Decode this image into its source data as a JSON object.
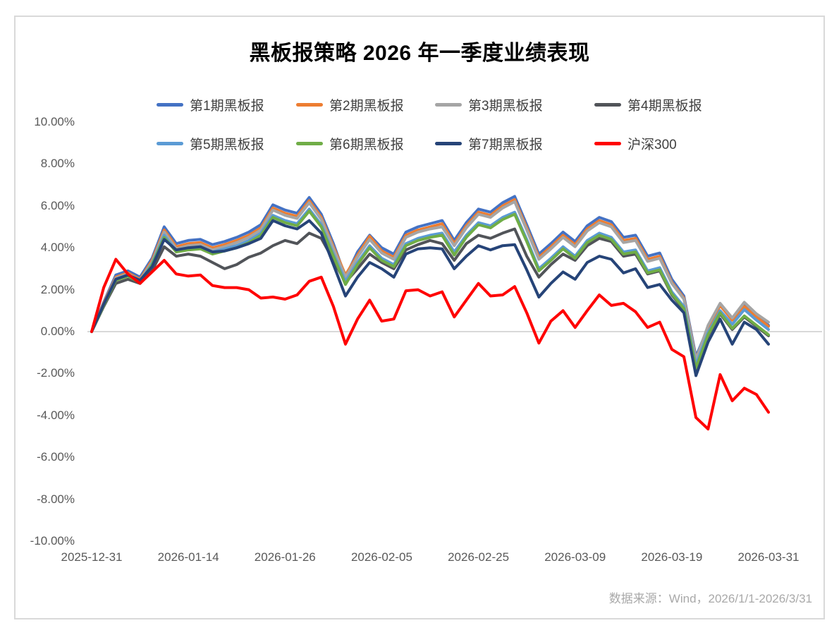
{
  "title": "黑板报策略 2026 年一季度业绩表现",
  "source_note": "数据来源：Wind，2026/1/1-2026/3/31",
  "chart_data": {
    "type": "line",
    "title": "黑板报策略 2026 年一季度业绩表现",
    "xlabel": "",
    "ylabel": "",
    "ylim": [
      -10,
      10
    ],
    "y_tick_labels": [
      "10.00%",
      "8.00%",
      "6.00%",
      "4.00%",
      "2.00%",
      "0.00%",
      "-2.00%",
      "-4.00%",
      "-6.00%",
      "-8.00%",
      "-10.00%"
    ],
    "x_tick_labels": [
      "2025-12-31",
      "2026-01-14",
      "2026-01-26",
      "2026-02-05",
      "2026-02-25",
      "2026-03-09",
      "2026-03-19",
      "2026-03-31"
    ],
    "x_tick_every": 8,
    "n_points": 57,
    "grid": "zero-line-only",
    "gridline_color": "#d9d9d9",
    "legend_position": "top",
    "series": [
      {
        "name": "第1期黑板报",
        "color": "#4472C4",
        "values": [
          0,
          1.4,
          2.7,
          2.9,
          2.6,
          3.5,
          5.0,
          4.2,
          4.35,
          4.4,
          4.15,
          4.3,
          4.5,
          4.75,
          5.1,
          6.05,
          5.8,
          5.65,
          6.4,
          5.6,
          4.2,
          2.6,
          3.8,
          4.6,
          4.0,
          3.7,
          4.75,
          5.0,
          5.15,
          5.3,
          4.35,
          5.2,
          5.85,
          5.7,
          6.15,
          6.45,
          5.1,
          3.7,
          4.2,
          4.75,
          4.3,
          5.05,
          5.45,
          5.25,
          4.5,
          4.6,
          3.6,
          3.75,
          2.5,
          1.7,
          -1.2,
          0.2,
          1.3,
          0.6,
          1.25,
          0.75,
          0.3
        ]
      },
      {
        "name": "第2期黑板报",
        "color": "#ED7D31",
        "values": [
          0,
          1.35,
          2.6,
          2.8,
          2.5,
          3.4,
          4.85,
          4.05,
          4.2,
          4.25,
          4.0,
          4.15,
          4.35,
          4.6,
          4.95,
          5.9,
          5.65,
          5.5,
          6.25,
          5.45,
          4.05,
          2.7,
          3.65,
          4.55,
          3.85,
          3.55,
          4.6,
          4.85,
          5.0,
          5.15,
          4.2,
          5.05,
          5.7,
          5.55,
          6.0,
          6.3,
          4.95,
          3.55,
          4.05,
          4.6,
          4.15,
          4.9,
          5.3,
          5.1,
          4.35,
          4.45,
          3.45,
          3.6,
          2.35,
          1.6,
          -1.3,
          0.15,
          1.25,
          0.55,
          1.2,
          0.7,
          0.25
        ]
      },
      {
        "name": "第3期黑板报",
        "color": "#A5A5A5",
        "values": [
          0,
          1.3,
          2.55,
          2.75,
          2.45,
          3.3,
          4.75,
          3.95,
          4.1,
          4.15,
          3.9,
          4.05,
          4.25,
          4.5,
          4.85,
          5.8,
          5.55,
          5.4,
          6.15,
          5.35,
          3.95,
          2.6,
          3.55,
          4.4,
          3.75,
          3.45,
          4.5,
          4.75,
          4.9,
          5.0,
          4.1,
          4.95,
          5.6,
          5.45,
          5.9,
          6.2,
          4.85,
          3.45,
          3.95,
          4.5,
          4.05,
          4.8,
          5.2,
          5.0,
          4.25,
          4.35,
          3.35,
          3.5,
          2.3,
          1.55,
          -1.35,
          0.3,
          1.35,
          0.65,
          1.4,
          0.85,
          0.45
        ]
      },
      {
        "name": "第4期黑板报",
        "color": "#515459",
        "values": [
          0,
          1.2,
          2.3,
          2.5,
          2.3,
          2.9,
          4.05,
          3.6,
          3.7,
          3.6,
          3.3,
          3.0,
          3.2,
          3.55,
          3.75,
          4.1,
          4.35,
          4.2,
          4.7,
          4.45,
          3.4,
          2.35,
          3.0,
          3.7,
          3.3,
          3.0,
          3.9,
          4.15,
          4.35,
          4.2,
          3.4,
          4.2,
          4.6,
          4.45,
          4.7,
          4.9,
          3.6,
          2.6,
          3.2,
          3.7,
          3.4,
          4.1,
          4.45,
          4.3,
          3.6,
          3.7,
          2.75,
          2.9,
          1.75,
          1.05,
          -1.8,
          -0.2,
          0.85,
          0.1,
          0.7,
          0.25,
          -0.2
        ]
      },
      {
        "name": "第5期黑板报",
        "color": "#5B9BD5",
        "values": [
          0,
          1.3,
          2.5,
          2.7,
          2.4,
          3.25,
          4.6,
          3.85,
          4.0,
          4.05,
          3.8,
          3.95,
          4.1,
          4.35,
          4.7,
          5.55,
          5.3,
          5.15,
          5.85,
          5.1,
          3.7,
          2.4,
          3.3,
          4.1,
          3.5,
          3.2,
          4.2,
          4.45,
          4.6,
          4.7,
          3.8,
          4.6,
          5.2,
          5.05,
          5.45,
          5.7,
          4.4,
          3.0,
          3.5,
          4.05,
          3.6,
          4.35,
          4.7,
          4.5,
          3.8,
          3.9,
          2.9,
          3.05,
          1.9,
          1.2,
          -1.6,
          -0.05,
          1.0,
          0.35,
          1.05,
          0.55,
          0.1
        ]
      },
      {
        "name": "第6期黑板报",
        "color": "#70AD47",
        "values": [
          0,
          1.25,
          2.45,
          2.65,
          2.35,
          3.2,
          4.5,
          3.8,
          3.9,
          3.95,
          3.7,
          3.85,
          4.0,
          4.25,
          4.6,
          5.45,
          5.2,
          5.05,
          5.75,
          5.0,
          3.6,
          2.25,
          3.2,
          4.0,
          3.4,
          3.1,
          4.1,
          4.35,
          4.5,
          4.6,
          3.65,
          4.5,
          5.1,
          4.95,
          5.35,
          5.6,
          4.3,
          2.9,
          3.4,
          3.95,
          3.5,
          4.25,
          4.6,
          4.4,
          3.7,
          3.8,
          2.8,
          2.95,
          1.8,
          1.1,
          -1.75,
          -0.15,
          0.9,
          0.15,
          0.75,
          0.3,
          -0.15
        ]
      },
      {
        "name": "第7期黑板报",
        "color": "#264478",
        "values": [
          0,
          1.3,
          2.5,
          2.7,
          2.45,
          3.1,
          4.4,
          3.9,
          4.0,
          4.05,
          3.8,
          3.85,
          4.0,
          4.2,
          4.45,
          5.3,
          5.05,
          4.9,
          5.3,
          4.7,
          3.2,
          1.7,
          2.6,
          3.3,
          3.0,
          2.6,
          3.7,
          3.95,
          4.0,
          3.95,
          3.0,
          3.6,
          4.1,
          3.9,
          4.1,
          4.15,
          2.95,
          1.65,
          2.3,
          2.85,
          2.5,
          3.3,
          3.6,
          3.45,
          2.8,
          3.0,
          2.1,
          2.25,
          1.5,
          0.9,
          -2.1,
          -0.5,
          0.6,
          -0.6,
          0.45,
          0.1,
          -0.6
        ]
      },
      {
        "name": "沪深300",
        "color": "#FF0000",
        "values": [
          0,
          2.1,
          3.45,
          2.75,
          2.3,
          2.85,
          3.4,
          2.75,
          2.65,
          2.7,
          2.2,
          2.1,
          2.1,
          2.0,
          1.6,
          1.65,
          1.55,
          1.75,
          2.4,
          2.6,
          1.2,
          -0.6,
          0.6,
          1.5,
          0.5,
          0.6,
          1.95,
          2.0,
          1.7,
          1.9,
          0.7,
          1.5,
          2.3,
          1.7,
          1.75,
          2.15,
          0.9,
          -0.55,
          0.5,
          1.0,
          0.2,
          1.0,
          1.75,
          1.25,
          1.35,
          0.95,
          0.2,
          0.45,
          -0.85,
          -1.2,
          -4.1,
          -4.65,
          -2.05,
          -3.3,
          -2.7,
          -3.0,
          -3.85
        ]
      }
    ]
  }
}
